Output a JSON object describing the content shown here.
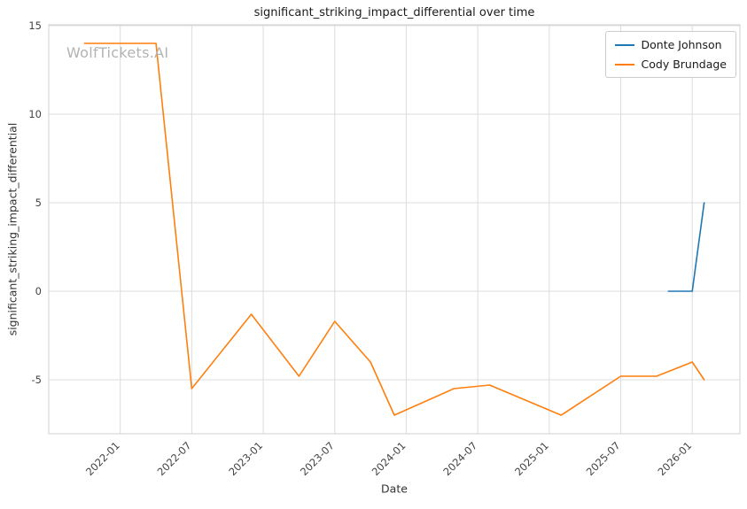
{
  "watermark": "WolfTickets.AI",
  "chart_data": {
    "type": "line",
    "title": "significant_striking_impact_differential over time",
    "xlabel": "Date",
    "ylabel": "significant_striking_impact_differential",
    "x_ticks": [
      "2022-01",
      "2022-07",
      "2023-01",
      "2023-07",
      "2024-01",
      "2024-07",
      "2025-01",
      "2025-07",
      "2026-01"
    ],
    "y_ticks": [
      -5,
      0,
      5,
      10,
      15
    ],
    "x_domain": [
      "2021-07",
      "2026-05"
    ],
    "y_domain": [
      -8.05,
      15.05
    ],
    "grid": true,
    "legend_position": "upper-right",
    "series": [
      {
        "name": "Donte Johnson",
        "color": "#1f77b4",
        "points": [
          [
            "2025-11",
            0
          ],
          [
            "2026-01",
            0
          ],
          [
            "2026-02",
            5
          ]
        ]
      },
      {
        "name": "Cody Brundage",
        "color": "#ff7f0e",
        "points": [
          [
            "2021-10",
            14
          ],
          [
            "2022-01",
            14
          ],
          [
            "2022-04",
            14
          ],
          [
            "2022-07",
            -5.5
          ],
          [
            "2022-12",
            -1.3
          ],
          [
            "2023-04",
            -4.8
          ],
          [
            "2023-07",
            -1.7
          ],
          [
            "2023-10",
            -4.0
          ],
          [
            "2023-12",
            -7.0
          ],
          [
            "2024-05",
            -5.5
          ],
          [
            "2024-08",
            -5.3
          ],
          [
            "2025-02",
            -7.0
          ],
          [
            "2025-07",
            -4.8
          ],
          [
            "2025-10",
            -4.8
          ],
          [
            "2026-01",
            -4.0
          ],
          [
            "2026-02",
            -5.0
          ]
        ]
      }
    ]
  }
}
